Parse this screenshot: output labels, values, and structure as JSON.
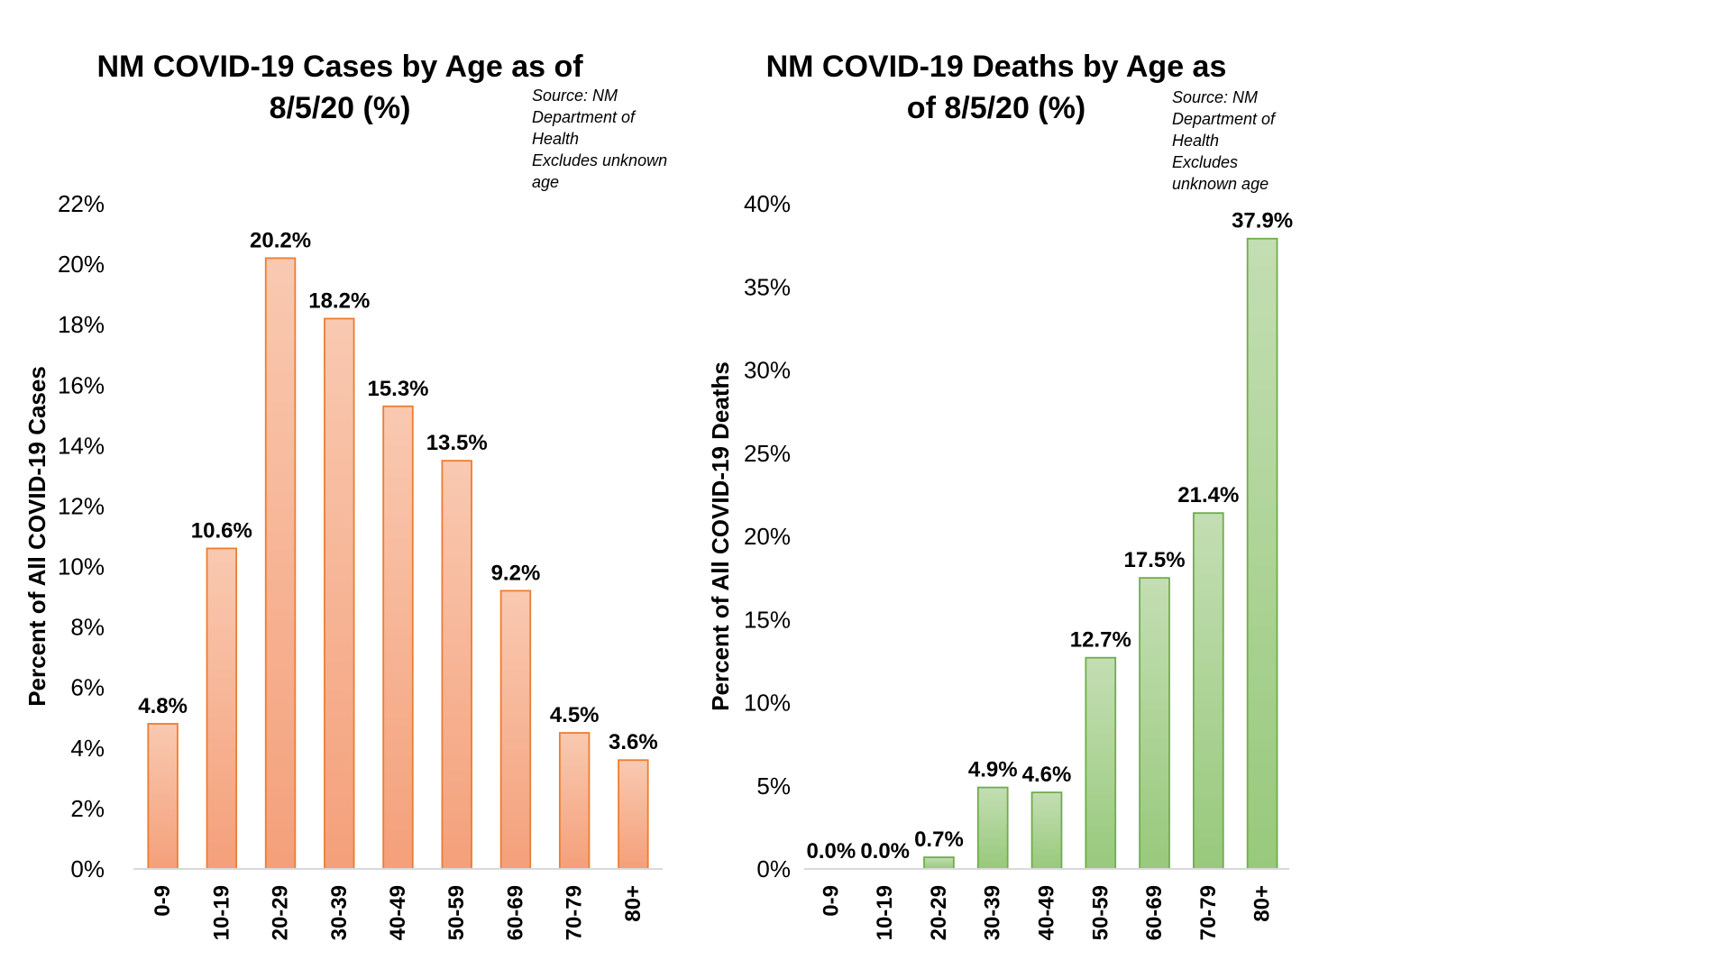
{
  "chart_data": [
    {
      "type": "bar",
      "title": [
        "NM COVID-19 Cases by Age as of",
        "8/5/20 (%)"
      ],
      "note": [
        "Source: NM",
        "Department of",
        "Health",
        "Excludes unknown",
        "age"
      ],
      "ylabel": "Percent of All COVID-19 Cases",
      "xlabel": "",
      "categories": [
        "0-9",
        "10-19",
        "20-29",
        "30-39",
        "40-49",
        "50-59",
        "60-69",
        "70-79",
        "80+"
      ],
      "values": [
        4.8,
        10.6,
        20.2,
        18.2,
        15.3,
        13.5,
        9.2,
        4.5,
        3.6
      ],
      "data_labels": [
        "4.8%",
        "10.6%",
        "20.2%",
        "18.2%",
        "15.3%",
        "13.5%",
        "9.2%",
        "4.5%",
        "3.6%"
      ],
      "ylim": [
        0,
        22
      ],
      "yticks": [
        0,
        2,
        4,
        6,
        8,
        10,
        12,
        14,
        16,
        18,
        20,
        22
      ],
      "ytick_labels": [
        "0%",
        "2%",
        "4%",
        "6%",
        "8%",
        "10%",
        "12%",
        "14%",
        "16%",
        "18%",
        "20%",
        "22%"
      ],
      "grid": false,
      "legend": "none",
      "colors": {
        "fill_top": "#f9c9b1",
        "fill_bottom": "#f4a07a",
        "stroke": "#ed7d31"
      }
    },
    {
      "type": "bar",
      "title": [
        "NM COVID-19 Deaths by Age as",
        "of 8/5/20 (%)"
      ],
      "note": [
        "Source: NM",
        "Department of",
        "Health",
        "Excludes",
        "unknown age"
      ],
      "ylabel": "Percent of All COVID-19 Deaths",
      "xlabel": "",
      "categories": [
        "0-9",
        "10-19",
        "20-29",
        "30-39",
        "40-49",
        "50-59",
        "60-69",
        "70-79",
        "80+"
      ],
      "values": [
        0.0,
        0.0,
        0.7,
        4.9,
        4.6,
        12.7,
        17.5,
        21.4,
        37.9
      ],
      "data_labels": [
        "0.0%",
        "0.0%",
        "0.7%",
        "4.9%",
        "4.6%",
        "12.7%",
        "17.5%",
        "21.4%",
        "37.9%"
      ],
      "ylim": [
        0,
        40
      ],
      "yticks": [
        0,
        5,
        10,
        15,
        20,
        25,
        30,
        35,
        40
      ],
      "ytick_labels": [
        "0%",
        "5%",
        "10%",
        "15%",
        "20%",
        "25%",
        "30%",
        "35%",
        "40%"
      ],
      "grid": false,
      "legend": "none",
      "colors": {
        "fill_top": "#c3deb3",
        "fill_bottom": "#98c97c",
        "stroke": "#70ad47"
      }
    }
  ]
}
